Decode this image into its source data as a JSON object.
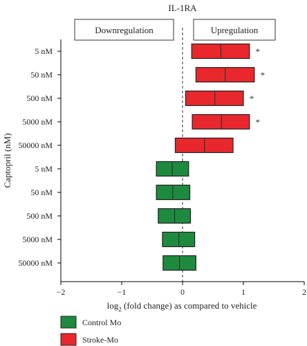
{
  "chart_data": {
    "type": "box",
    "title": "IL-1RA",
    "xlabel": "log2 (fold change) as compared to vehicle",
    "xlabel_main": "log",
    "xlabel_sub": "2",
    "xlabel_rest": " (fold change) as compared to vehicle",
    "ylabel": "Captopril (nM)",
    "xlim": [
      -2,
      2
    ],
    "xticks": [
      "−2",
      "−1",
      "0",
      "1",
      "2"
    ],
    "xtick_values": [
      -2,
      -1,
      0,
      1,
      2
    ],
    "annotations": {
      "left": "Downregulation",
      "right": "Upregulation",
      "significance_mark": "*"
    },
    "categories": [
      "5 nM",
      "50 nM",
      "500 nM",
      "5000 nM",
      "50000 nM",
      "5 nM",
      "50 nM",
      "500 nM",
      "5000 nM",
      "50000 nM"
    ],
    "series": [
      {
        "name": "Stroke-Mo",
        "color": "#e8282c",
        "rows": [
          0,
          1,
          2,
          3,
          4
        ],
        "boxes": [
          {
            "low": 0.15,
            "median": 0.63,
            "high": 1.1,
            "significant": true
          },
          {
            "low": 0.22,
            "median": 0.7,
            "high": 1.18,
            "significant": true
          },
          {
            "low": 0.05,
            "median": 0.53,
            "high": 1.0,
            "significant": true
          },
          {
            "low": 0.16,
            "median": 0.64,
            "high": 1.1,
            "significant": true
          },
          {
            "low": -0.12,
            "median": 0.36,
            "high": 0.83,
            "significant": false
          }
        ]
      },
      {
        "name": "Control Mo",
        "color": "#1d8a3d",
        "rows": [
          5,
          6,
          7,
          8,
          9
        ],
        "boxes": [
          {
            "low": -0.43,
            "median": -0.17,
            "high": 0.1,
            "significant": false
          },
          {
            "low": -0.43,
            "median": -0.16,
            "high": 0.12,
            "significant": false
          },
          {
            "low": -0.4,
            "median": -0.13,
            "high": 0.13,
            "significant": false
          },
          {
            "low": -0.33,
            "median": -0.06,
            "high": 0.2,
            "significant": false
          },
          {
            "low": -0.32,
            "median": -0.05,
            "high": 0.22,
            "significant": false
          }
        ]
      }
    ],
    "legend": {
      "placement": "bottom-left",
      "entries": [
        {
          "label": "Control Mo",
          "color": "#1d8a3d"
        },
        {
          "label": "Stroke-Mo",
          "color": "#e8282c"
        }
      ]
    }
  }
}
